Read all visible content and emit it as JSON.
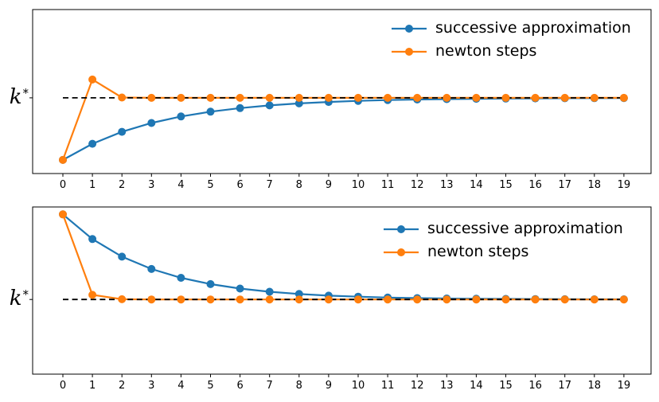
{
  "window": {
    "background": "#ffffff"
  },
  "colors": {
    "blue": "#1f77b4",
    "orange": "#ff7f0e",
    "black": "#000000"
  },
  "y_axis": {
    "base": "k",
    "sup": "*"
  },
  "legend": {
    "items": [
      {
        "label": "successive approximation",
        "color": "blue"
      },
      {
        "label": "newton steps",
        "color": "orange"
      }
    ]
  },
  "chart_data": [
    {
      "type": "line",
      "title": "",
      "x": [
        0,
        1,
        2,
        3,
        4,
        5,
        6,
        7,
        8,
        9,
        10,
        11,
        12,
        13,
        14,
        15,
        16,
        17,
        18,
        19
      ],
      "xtick_labels": [
        "0",
        "1",
        "2",
        "3",
        "4",
        "5",
        "6",
        "7",
        "8",
        "9",
        "10",
        "11",
        "12",
        "13",
        "14",
        "15",
        "16",
        "17",
        "18",
        "19"
      ],
      "ytick_labels": [
        "k*"
      ],
      "k_star": 1.0,
      "series": [
        {
          "name": "successive approximation",
          "color": "#1f77b4",
          "marker": "o",
          "values": [
            0.2,
            0.408,
            0.562,
            0.676,
            0.76,
            0.822,
            0.868,
            0.903,
            0.928,
            0.947,
            0.961,
            0.971,
            0.978,
            0.984,
            0.988,
            0.991,
            0.993,
            0.995,
            0.996,
            0.997
          ]
        },
        {
          "name": "newton steps",
          "color": "#ff7f0e",
          "marker": "o",
          "values": [
            0.2,
            1.236,
            1.004,
            1.0,
            1.0,
            1.0,
            1.0,
            1.0,
            1.0,
            1.0,
            1.0,
            1.0,
            1.0,
            1.0,
            1.0,
            1.0,
            1.0,
            1.0,
            1.0,
            1.0
          ]
        }
      ],
      "reference_line": {
        "label": "k*",
        "value": 1.0,
        "style": "dashed",
        "color": "#000000",
        "x_start": 0,
        "x_end": 19
      },
      "xlim": [
        -1.025,
        19.92
      ],
      "ylim": [
        0.025,
        2.137
      ],
      "grid": false,
      "legend_position": "upper right"
    },
    {
      "type": "line",
      "title": "",
      "x": [
        0,
        1,
        2,
        3,
        4,
        5,
        6,
        7,
        8,
        9,
        10,
        11,
        12,
        13,
        14,
        15,
        16,
        17,
        18,
        19
      ],
      "xtick_labels": [
        "0",
        "1",
        "2",
        "3",
        "4",
        "5",
        "6",
        "7",
        "8",
        "9",
        "10",
        "11",
        "12",
        "13",
        "14",
        "15",
        "16",
        "17",
        "18",
        "19"
      ],
      "ytick_labels": [
        "k*"
      ],
      "k_star": 1.0,
      "series": [
        {
          "name": "successive approximation",
          "color": "#1f77b4",
          "marker": "o",
          "values": [
            2.1,
            1.781,
            1.554,
            1.394,
            1.28,
            1.199,
            1.141,
            1.1,
            1.071,
            1.05,
            1.036,
            1.025,
            1.018,
            1.013,
            1.009,
            1.007,
            1.005,
            1.003,
            1.002,
            1.002
          ]
        },
        {
          "name": "newton steps",
          "color": "#ff7f0e",
          "marker": "o",
          "values": [
            2.1,
            1.06,
            1.003,
            1.0,
            1.0,
            1.0,
            1.0,
            1.0,
            1.0,
            1.0,
            1.0,
            1.0,
            1.0,
            1.0,
            1.0,
            1.0,
            1.0,
            1.0,
            1.0,
            1.0
          ]
        }
      ],
      "reference_line": {
        "label": "k*",
        "value": 1.0,
        "style": "dashed",
        "color": "#000000",
        "x_start": 0,
        "x_end": 19
      },
      "xlim": [
        -1.025,
        19.92
      ],
      "ylim": [
        0.035,
        2.196
      ],
      "grid": false,
      "legend_position": "upper right"
    }
  ]
}
